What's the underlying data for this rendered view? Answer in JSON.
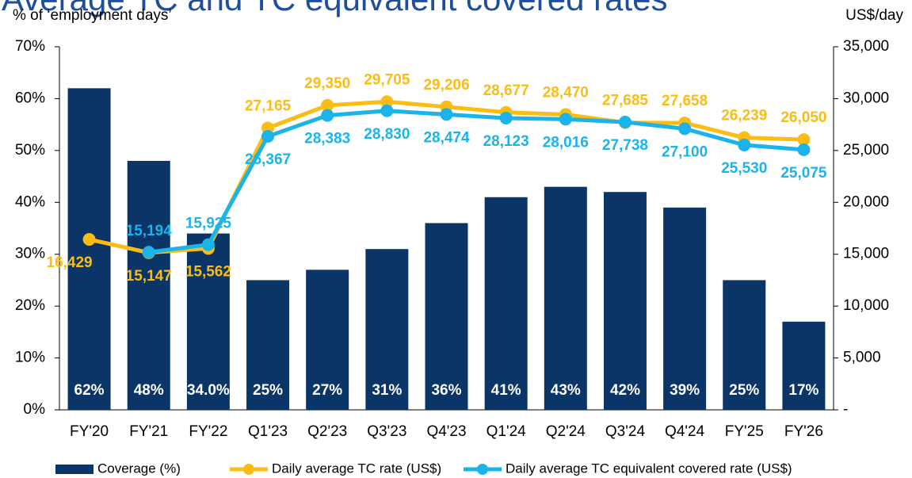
{
  "chart_data": {
    "type": "combo",
    "title": "Average TC and TC equivalent covered rates",
    "y_label": "% of ‘employment days’",
    "y2_label": "US$/day",
    "categories": [
      "FY'20",
      "FY'21",
      "FY'22",
      "Q1'23",
      "Q2'23",
      "Q3'23",
      "Q4'23",
      "Q1'24",
      "Q2'24",
      "Q3'24",
      "Q4'24",
      "FY'25",
      "FY'26"
    ],
    "series": [
      {
        "name": "Coverage (%)",
        "type": "bar",
        "color": "#0b3467",
        "values": [
          62,
          48,
          34,
          25,
          27,
          31,
          36,
          41,
          43,
          42,
          39,
          25,
          17
        ],
        "value_labels": [
          "62%",
          "48%",
          "34.0%",
          "25%",
          "27%",
          "31%",
          "36%",
          "41%",
          "43%",
          "42%",
          "39%",
          "25%",
          "17%"
        ]
      },
      {
        "name": "Daily average TC rate (US$)",
        "type": "line",
        "axis": "y2",
        "color": "#fbbc13",
        "values": [
          16429,
          15147,
          15562,
          27165,
          29350,
          29705,
          29206,
          28677,
          28470,
          27685,
          27658,
          26239,
          26050
        ],
        "value_labels": [
          "16,429",
          "15,147",
          "15,562",
          "27,165",
          "29,350",
          "29,705",
          "29,206",
          "28,677",
          "28,470",
          "27,685",
          "27,658",
          "26,239",
          "26,050"
        ]
      },
      {
        "name": "Daily average TC equivalent covered rate (US$)",
        "type": "line",
        "axis": "y2",
        "color": "#1ab4ea",
        "values": [
          null,
          15194,
          15925,
          26367,
          28383,
          28830,
          28474,
          28123,
          28016,
          27738,
          27100,
          25530,
          25075
        ],
        "value_labels": [
          null,
          "15,194",
          "15,925",
          "26,367",
          "28,383",
          "28,830",
          "28,474",
          "28,123",
          "28,016",
          "27,738",
          "27,100",
          "25,530",
          "25,075"
        ]
      }
    ],
    "ylim": [
      0,
      70
    ],
    "yticks": [
      {
        "value": 0,
        "label": "0%"
      },
      {
        "value": 10,
        "label": "10%"
      },
      {
        "value": 20,
        "label": "20%"
      },
      {
        "value": 30,
        "label": "30%"
      },
      {
        "value": 40,
        "label": "40%"
      },
      {
        "value": 50,
        "label": "50%"
      },
      {
        "value": 60,
        "label": "60%"
      },
      {
        "value": 70,
        "label": "70%"
      }
    ],
    "y2lim": [
      0,
      35000
    ],
    "y2ticks": [
      {
        "value": 0,
        "label": "-"
      },
      {
        "value": 5000,
        "label": "5,000"
      },
      {
        "value": 10000,
        "label": "10,000"
      },
      {
        "value": 15000,
        "label": "15,000"
      },
      {
        "value": 20000,
        "label": "20,000"
      },
      {
        "value": 25000,
        "label": "25,000"
      },
      {
        "value": 30000,
        "label": "30,000"
      },
      {
        "value": 35000,
        "label": "35,000"
      }
    ],
    "legend": "bottom"
  }
}
